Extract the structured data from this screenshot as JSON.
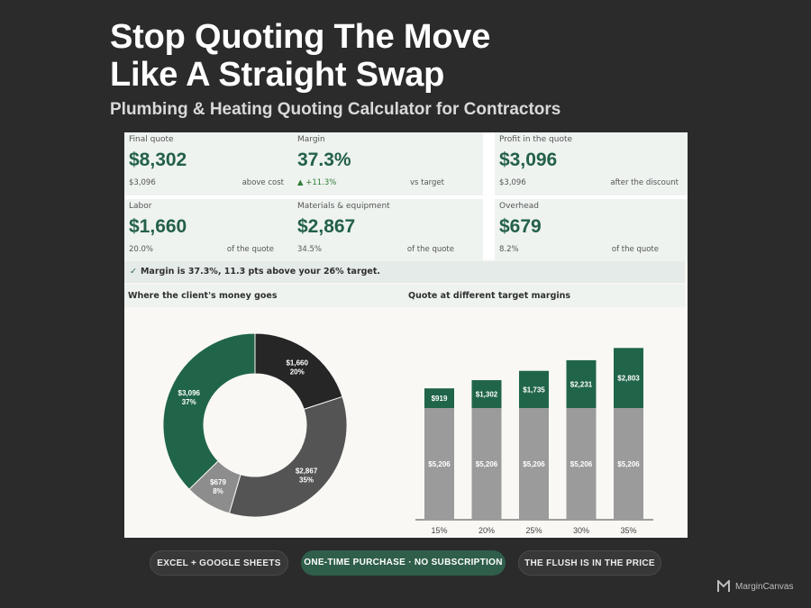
{
  "header": {
    "title_line1": "Stop Quoting The Move",
    "title_line2": "Like A Straight Swap",
    "subtitle": "Plumbing & Heating Quoting Calculator for Contractors"
  },
  "kpis": [
    {
      "label": "Final quote",
      "value": "$8,302",
      "sub": "$3,096",
      "note": "above cost"
    },
    {
      "label": "Margin",
      "value": "37.3%",
      "sub": "▲ +11.3%",
      "note": "vs target"
    },
    {
      "label": "Profit in the quote",
      "value": "$3,096",
      "sub": "$3,096",
      "note": "after the discount"
    },
    {
      "label": "Labor",
      "value": "$1,660",
      "sub": "20.0%",
      "note": "of the quote"
    },
    {
      "label": "Materials & equipment",
      "value": "$2,867",
      "sub": "34.5%",
      "note": "of the quote"
    },
    {
      "label": "Overhead",
      "value": "$679",
      "sub": "8.2%",
      "note": "of the quote"
    }
  ],
  "message": {
    "check_icon": "✓",
    "text": "Margin is 37.3%, 11.3 pts above your 26% target."
  },
  "sections": {
    "donut_title": "Where the client's money goes",
    "bar_title": "Quote at different target margins"
  },
  "colors": {
    "accent": "#23604a",
    "green_mark": "#206549",
    "dark_mark": "#262626",
    "mid_mark": "#545454",
    "light_mark": "#8d8d8d",
    "bar_base": "#9b9b9b"
  },
  "chart_data": [
    {
      "type": "pie",
      "style": "donut",
      "title": "Where the client's money goes",
      "slices": [
        {
          "value": 1660,
          "label": "$1,660",
          "pct": "20%",
          "color": "#262626"
        },
        {
          "value": 2867,
          "label": "$2,867",
          "pct": "35%",
          "color": "#545454"
        },
        {
          "value": 679,
          "label": "$679",
          "pct": "8%",
          "color": "#8d8d8d"
        },
        {
          "value": 3096,
          "label": "$3,096",
          "pct": "37%",
          "color": "#206549"
        }
      ]
    },
    {
      "type": "bar",
      "stacked": true,
      "title": "Quote at different target margins",
      "categories": [
        "15%",
        "20%",
        "25%",
        "30%",
        "35%"
      ],
      "series": [
        {
          "values": [
            5206,
            5206,
            5206,
            5206,
            5206
          ],
          "labels": [
            "$5,206",
            "$5,206",
            "$5,206",
            "$5,206",
            "$5,206"
          ],
          "color": "#9b9b9b"
        },
        {
          "values": [
            919,
            1302,
            1735,
            2231,
            2803
          ],
          "labels": [
            "$919",
            "$1,302",
            "$1,735",
            "$2,231",
            "$2,803"
          ],
          "color": "#206549"
        }
      ],
      "ylim": [
        0,
        8400
      ]
    }
  ],
  "badges": [
    {
      "label": "EXCEL + GOOGLE SHEETS"
    },
    {
      "label": "ONE-TIME PURCHASE · NO SUBSCRIPTION"
    },
    {
      "label": "THE FLUSH IS IN THE PRICE"
    }
  ],
  "brand": {
    "name": "MarginCanvas",
    "icon": "margincanvas-logo"
  }
}
